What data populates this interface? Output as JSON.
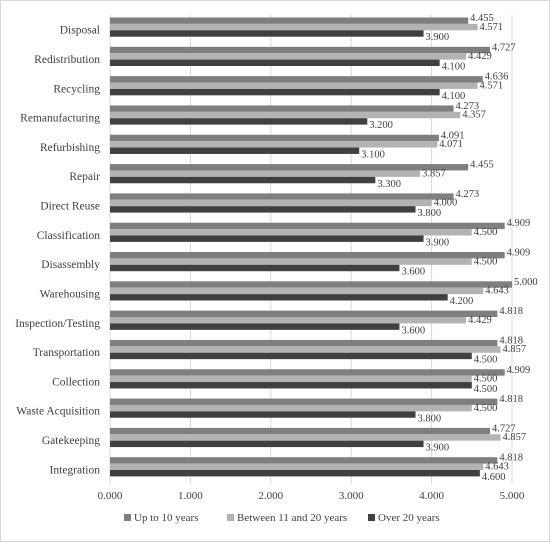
{
  "chart_data": {
    "type": "bar",
    "orientation": "horizontal",
    "title": "",
    "xlabel": "",
    "ylabel": "",
    "xlim": [
      0,
      5
    ],
    "x_ticks": [
      "0.000",
      "1.000",
      "2.000",
      "3.000",
      "4.000",
      "5.000"
    ],
    "grid": true,
    "legend_position": "bottom",
    "categories": [
      "Disposal",
      "Redistribution",
      "Recycling",
      "Remanufacturing",
      "Refurbishing",
      "Repair",
      "Direct Reuse",
      "Classification",
      "Disassembly",
      "Warehousing",
      "Inspection/Testing",
      "Transportation",
      "Collection",
      "Waste Acquisition",
      "Gatekeeping",
      "Integration"
    ],
    "series": [
      {
        "name": "Up to 10 years",
        "color": "#7f7f7f",
        "values": [
          4.455,
          4.727,
          4.636,
          4.273,
          4.091,
          4.455,
          4.273,
          4.909,
          4.909,
          5.0,
          4.818,
          4.818,
          4.909,
          4.818,
          4.727,
          4.818
        ],
        "labels": [
          "4.455",
          "4.727",
          "4.636",
          "4.273",
          "4.091",
          "4.455",
          "4.273",
          "4.909",
          "4.909",
          "5.000",
          "4.818",
          "4.818",
          "4.909",
          "4.818",
          "4.727",
          "4.818"
        ]
      },
      {
        "name": "Between 11 and 20 years",
        "color": "#b3b3b3",
        "values": [
          4.571,
          4.429,
          4.571,
          4.357,
          4.071,
          3.857,
          4.0,
          4.5,
          4.5,
          4.643,
          4.429,
          4.857,
          4.5,
          4.5,
          4.857,
          4.643
        ],
        "labels": [
          "4.571",
          "4.429",
          "4.571",
          "4.357",
          "4.071",
          "3.857",
          "4.000",
          "4.500",
          "4.500",
          "4.643",
          "4.429",
          "4.857",
          "4.500",
          "4.500",
          "4.857",
          "4.643"
        ]
      },
      {
        "name": "Over 20 years",
        "color": "#404040",
        "values": [
          3.9,
          4.1,
          4.1,
          3.2,
          3.1,
          3.3,
          3.8,
          3.9,
          3.6,
          4.2,
          3.6,
          4.5,
          4.5,
          3.8,
          3.9,
          4.6
        ],
        "labels": [
          "3.900",
          "4.100",
          "4.100",
          "3.200",
          "3.100",
          "3.300",
          "3.800",
          "3.900",
          "3.600",
          "4.200",
          "3.600",
          "4.500",
          "4.500",
          "3.800",
          "3.900",
          "4.600"
        ]
      }
    ],
    "colors": {
      "gridline": "#d9d9d9",
      "text": "#404040"
    }
  }
}
